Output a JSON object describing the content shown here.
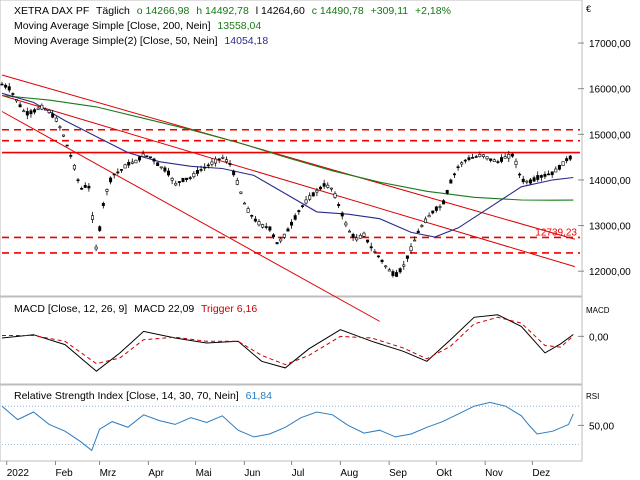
{
  "chart_data": [
    {
      "type": "line",
      "panel": "price",
      "header": {
        "instrument": "XETRA DAX PF",
        "interval": "Täglich",
        "open_label": "o 14266,98",
        "high_label": "h 14492,78",
        "low_label": "l 14264,60",
        "close_label": "c 14490,78",
        "change_label": "+309,11",
        "change_pct_label": "+2,18%"
      },
      "currency_label": "€",
      "ylim": [
        11500,
        17900
      ],
      "y_ticks": [
        12000,
        13000,
        14000,
        15000,
        16000,
        17000
      ],
      "y_tick_labels": [
        "12000,00",
        "13000,00",
        "14000,00",
        "15000,00",
        "16000,00",
        "17000,00"
      ],
      "x_labels": [
        "2022",
        "Feb",
        "Mrz",
        "Apr",
        "Mai",
        "Jun",
        "Jul",
        "Aug",
        "Sep",
        "Okt",
        "Nov",
        "Dez"
      ],
      "x_label_days": [
        3,
        34,
        62,
        93,
        123,
        154,
        184,
        215,
        246,
        276,
        307,
        337
      ],
      "day_range": [
        0,
        366
      ],
      "series": [
        {
          "name": "XETRA DAX PF",
          "style": "candlestick",
          "color": "#000000",
          "x": [
            0,
            5,
            10,
            15,
            20,
            25,
            30,
            35,
            40,
            45,
            50,
            55,
            60,
            65,
            70,
            75,
            80,
            85,
            90,
            95,
            100,
            105,
            110,
            115,
            120,
            125,
            130,
            135,
            140,
            145,
            150,
            155,
            160,
            165,
            170,
            175,
            180,
            185,
            190,
            195,
            200,
            205,
            210,
            215,
            220,
            225,
            230,
            235,
            240,
            245,
            250,
            255,
            260,
            265,
            270,
            275,
            280,
            285,
            290,
            295,
            300,
            305,
            310,
            315,
            320,
            325,
            330,
            335,
            340,
            345,
            350,
            355,
            360,
            363
          ],
          "values": [
            16100,
            16000,
            15700,
            15450,
            15500,
            15600,
            15500,
            15300,
            14900,
            14400,
            13800,
            13900,
            12450,
            13600,
            14100,
            14200,
            14350,
            14400,
            14550,
            14500,
            14300,
            14200,
            13900,
            14000,
            14050,
            14200,
            14300,
            14400,
            14500,
            14350,
            13900,
            13400,
            13150,
            13000,
            12950,
            12600,
            12800,
            13100,
            13400,
            13600,
            13750,
            13900,
            13800,
            13350,
            12900,
            12700,
            12800,
            12500,
            12300,
            12050,
            11900,
            12100,
            12500,
            12900,
            13150,
            13350,
            13450,
            13950,
            14300,
            14450,
            14500,
            14550,
            14450,
            14400,
            14500,
            14550,
            14000,
            13950,
            14050,
            14100,
            14150,
            14300,
            14490,
            14490
          ]
        },
        {
          "name": "Moving Average Simple [Close, 200, Nein]",
          "value_label": "13558,04",
          "color": "#1a7a1a",
          "x": [
            0,
            30,
            60,
            90,
            120,
            150,
            180,
            210,
            240,
            270,
            300,
            330,
            350,
            363
          ],
          "values": [
            15850,
            15750,
            15600,
            15350,
            15100,
            14820,
            14500,
            14200,
            13950,
            13750,
            13620,
            13560,
            13555,
            13558
          ]
        },
        {
          "name": "Moving Average Simple(2) [Close, 50, Nein]",
          "value_label": "14054,18",
          "color": "#2a2a8c",
          "x": [
            0,
            20,
            40,
            60,
            80,
            100,
            120,
            140,
            160,
            180,
            200,
            220,
            240,
            260,
            275,
            290,
            310,
            330,
            350,
            363
          ],
          "values": [
            15900,
            15700,
            15300,
            14950,
            14600,
            14400,
            14300,
            14250,
            14100,
            13700,
            13300,
            13250,
            13150,
            12850,
            12750,
            12950,
            13400,
            13850,
            14000,
            14054
          ]
        }
      ],
      "horizontal_levels": [
        {
          "value": 15100,
          "color": "#ee0000",
          "style": "dashed"
        },
        {
          "value": 14860,
          "color": "#ee0000",
          "style": "dashed"
        },
        {
          "value": 14600,
          "color": "#ee0000",
          "style": "solid"
        },
        {
          "value": 12739,
          "color": "#ee0000",
          "style": "dashed",
          "label": "12739,23"
        },
        {
          "value": 12400,
          "color": "#ee0000",
          "style": "dashed"
        }
      ],
      "trend_lines": [
        {
          "x": [
            0,
            364
          ],
          "values": [
            16300,
            12700
          ]
        },
        {
          "x": [
            0,
            364
          ],
          "values": [
            15850,
            12100
          ]
        },
        {
          "x": [
            0,
            240
          ],
          "values": [
            15500,
            10900
          ]
        }
      ]
    },
    {
      "type": "line",
      "panel": "macd",
      "title": "MACD [Close, 12, 26, 9]",
      "macd_label": "MACD 22,09",
      "trigger_label": "Trigger 6,16",
      "panel_label": "MACD",
      "ylim": [
        -550,
        450
      ],
      "y_ticks": [
        0
      ],
      "y_tick_labels": [
        "0,00"
      ],
      "series": [
        {
          "name": "MACD",
          "color": "#000000",
          "x": [
            0,
            20,
            40,
            60,
            75,
            90,
            110,
            130,
            150,
            165,
            180,
            195,
            215,
            235,
            255,
            270,
            285,
            300,
            315,
            330,
            345,
            355,
            363
          ],
          "values": [
            -20,
            20,
            -100,
            -420,
            -200,
            60,
            -20,
            -80,
            -60,
            -300,
            -380,
            -150,
            80,
            -60,
            -180,
            -300,
            -40,
            230,
            260,
            120,
            -200,
            -90,
            22
          ]
        },
        {
          "name": "Trigger",
          "color": "#cc0000",
          "style": "dashed",
          "x": [
            0,
            20,
            40,
            60,
            75,
            90,
            110,
            130,
            150,
            165,
            180,
            195,
            215,
            235,
            255,
            270,
            285,
            300,
            315,
            330,
            345,
            355,
            363
          ],
          "values": [
            10,
            10,
            -60,
            -330,
            -260,
            -40,
            -10,
            -60,
            -60,
            -230,
            -340,
            -230,
            0,
            -20,
            -140,
            -270,
            -120,
            150,
            230,
            160,
            -110,
            -130,
            6
          ]
        }
      ]
    },
    {
      "type": "line",
      "panel": "rsi",
      "title": "Relative Strength Index [Close, 14, 30, 70, Nein]",
      "value_label": "61,84",
      "panel_label": "RSI",
      "ylim": [
        15,
        90
      ],
      "y_ticks": [
        50
      ],
      "y_tick_labels": [
        "50,00"
      ],
      "levels": [
        30,
        70
      ],
      "series": [
        {
          "name": "RSI",
          "color": "#2b7bbf",
          "x": [
            0,
            10,
            20,
            30,
            40,
            50,
            57,
            62,
            70,
            80,
            90,
            100,
            110,
            120,
            130,
            140,
            150,
            160,
            170,
            180,
            190,
            200,
            210,
            220,
            230,
            240,
            250,
            260,
            270,
            280,
            290,
            300,
            310,
            320,
            330,
            335,
            340,
            350,
            360,
            363
          ],
          "values": [
            70,
            56,
            64,
            51,
            44,
            33,
            24,
            46,
            54,
            48,
            61,
            55,
            51,
            58,
            53,
            60,
            45,
            38,
            41,
            48,
            58,
            64,
            61,
            50,
            42,
            45,
            38,
            41,
            48,
            54,
            62,
            70,
            74,
            70,
            60,
            50,
            41,
            44,
            51,
            62
          ]
        }
      ]
    }
  ]
}
